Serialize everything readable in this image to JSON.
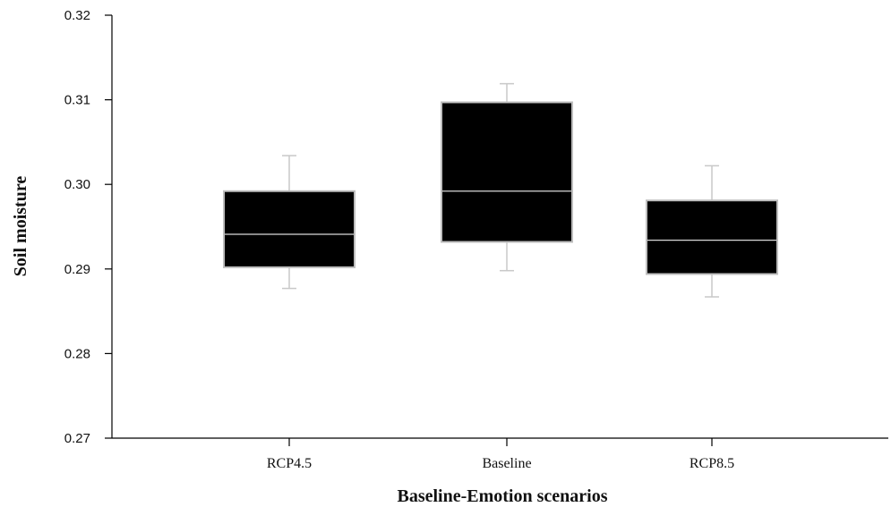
{
  "chart_data": {
    "type": "boxplot",
    "xlabel": "Baseline-Emotion scenarios",
    "ylabel": "Soil moisture",
    "ylim": [
      0.27,
      0.32
    ],
    "y_ticks": [
      "0.27",
      "0.28",
      "0.29",
      "0.30",
      "0.31",
      "0.32"
    ],
    "categories": [
      "RCP4.5",
      "Baseline",
      "RCP8.5"
    ],
    "boxes": [
      {
        "category": "RCP4.5",
        "whisker_low": 0.2877,
        "q1": 0.2902,
        "median": 0.2941,
        "q3": 0.2992,
        "whisker_high": 0.3034
      },
      {
        "category": "Baseline",
        "whisker_low": 0.2898,
        "q1": 0.2932,
        "median": 0.2992,
        "q3": 0.3097,
        "whisker_high": 0.3119
      },
      {
        "category": "RCP8.5",
        "whisker_low": 0.2867,
        "q1": 0.2894,
        "median": 0.2934,
        "q3": 0.2981,
        "whisker_high": 0.3022
      }
    ],
    "grid": false,
    "legend": "none",
    "colors": {
      "box_fill": "#000000",
      "box_edge": "#bdbdbd",
      "median_line": "#d9d9d9",
      "whisker": "#c8c8c8",
      "axis": "#000000"
    }
  }
}
